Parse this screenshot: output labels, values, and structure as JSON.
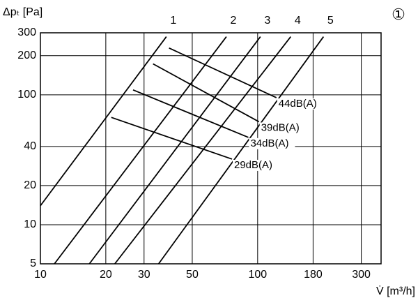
{
  "chart_data": {
    "type": "line",
    "x_label": "V̇ [m³/h]",
    "y_label": "Δpₜ [Pa]",
    "annotation": "①",
    "xscale": "log",
    "yscale": "log",
    "xlim": [
      10,
      370
    ],
    "ylim": [
      5,
      300
    ],
    "xticks": [
      10,
      20,
      30,
      50,
      100,
      180,
      300
    ],
    "yticks": [
      5,
      10,
      20,
      40,
      100,
      200,
      300
    ],
    "grid": true,
    "series": [
      {
        "name": "1",
        "color": "#000000",
        "x": [
          10,
          38
        ],
        "values": [
          14,
          280
        ]
      },
      {
        "name": "2",
        "color": "#000000",
        "x": [
          11.6,
          71.8
        ],
        "values": [
          5,
          280
        ]
      },
      {
        "name": "3",
        "color": "#000000",
        "x": [
          16.8,
          103
        ],
        "values": [
          5,
          280
        ]
      },
      {
        "name": "4",
        "color": "#000000",
        "x": [
          22,
          142
        ],
        "values": [
          5,
          280
        ]
      },
      {
        "name": "5",
        "color": "#000000",
        "x": [
          35,
          201
        ],
        "values": [
          5,
          280
        ]
      }
    ],
    "noise_lines": [
      {
        "name": "44dB(A)",
        "color": "#000000",
        "x": [
          39.1,
          122
        ],
        "values": [
          229,
          95
        ]
      },
      {
        "name": "39dB(A)",
        "color": "#000000",
        "x": [
          33.0,
          101.4
        ],
        "values": [
          173,
          62
        ]
      },
      {
        "name": "34dB(A)",
        "color": "#000000",
        "x": [
          26.7,
          90.6
        ],
        "values": [
          109,
          47
        ]
      },
      {
        "name": "29dB(A)",
        "color": "#000000",
        "x": [
          21.2,
          76.2
        ],
        "values": [
          67,
          32
        ]
      }
    ]
  }
}
